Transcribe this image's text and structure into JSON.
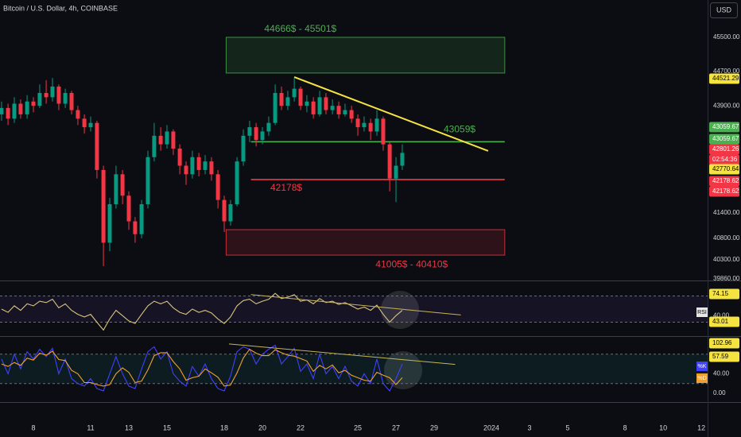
{
  "chart_data": [
    {
      "type": "candlestick",
      "title": "Bitcoin / U.S. Dollar, 4h, COINBASE",
      "currency": "USD",
      "x": [
        6.33,
        6.67,
        7,
        7.33,
        7.67,
        8,
        8.33,
        8.67,
        9,
        9.33,
        9.67,
        10,
        10.33,
        10.67,
        11,
        11.33,
        11.67,
        12,
        12.33,
        12.67,
        13,
        13.33,
        13.67,
        14,
        14.33,
        14.67,
        15,
        15.33,
        15.67,
        16,
        16.33,
        16.67,
        17,
        17.33,
        17.67,
        18,
        18.33,
        18.67,
        19,
        19.33,
        19.67,
        20,
        20.33,
        20.67,
        21,
        21.33,
        21.67,
        22,
        22.33,
        22.67,
        23,
        23.33,
        23.67,
        24,
        24.33,
        24.67,
        25,
        25.33,
        25.67,
        26,
        26.33,
        26.67,
        27,
        27.33
      ],
      "open": [
        43700,
        43850,
        43600,
        43950,
        43700,
        44000,
        43900,
        44200,
        44100,
        44350,
        43950,
        44200,
        43800,
        43600,
        43400,
        43500,
        42400,
        40700,
        41600,
        42300,
        41800,
        41200,
        40900,
        41600,
        42700,
        43200,
        43000,
        43300,
        42900,
        42500,
        42300,
        42700,
        42400,
        42600,
        42300,
        41700,
        41200,
        41600,
        42600,
        43200,
        43400,
        43100,
        43300,
        43500,
        44200,
        43900,
        44100,
        44300,
        43900,
        44000,
        43700,
        44100,
        43800,
        43900,
        43700,
        43800,
        43600,
        43400,
        43500,
        43300,
        43600,
        43000,
        42200,
        42500
      ],
      "high": [
        44000,
        43950,
        44100,
        44050,
        44150,
        44100,
        44400,
        44500,
        44550,
        44400,
        44300,
        44250,
        43900,
        43700,
        43650,
        43550,
        42500,
        41750,
        42500,
        42400,
        41900,
        41300,
        41700,
        42850,
        43500,
        43400,
        43450,
        43350,
        43000,
        42600,
        42850,
        42800,
        42750,
        42700,
        42400,
        41800,
        41700,
        42700,
        43350,
        43550,
        43500,
        43400,
        43650,
        44400,
        44350,
        44250,
        44550,
        44350,
        44150,
        44100,
        44250,
        44200,
        44050,
        44000,
        43950,
        43900,
        43700,
        43650,
        43600,
        43800,
        43650,
        43050,
        42700,
        43000
      ],
      "low": [
        43550,
        43450,
        43500,
        43600,
        43600,
        43750,
        43850,
        43950,
        44000,
        43800,
        43850,
        43700,
        43450,
        43250,
        43300,
        42200,
        40150,
        40500,
        41500,
        41600,
        41000,
        40700,
        40800,
        41500,
        42600,
        42850,
        42900,
        42750,
        42300,
        42050,
        42200,
        42250,
        42300,
        42150,
        41500,
        40950,
        41100,
        41550,
        42500,
        43050,
        42950,
        43000,
        43200,
        43450,
        43800,
        43800,
        44000,
        43800,
        43750,
        43600,
        43650,
        43700,
        43700,
        43600,
        43650,
        43500,
        43200,
        43300,
        43100,
        43200,
        42850,
        41900,
        41650,
        42400
      ],
      "close": [
        43850,
        43600,
        43950,
        43700,
        44000,
        43900,
        44200,
        44100,
        44350,
        43950,
        44200,
        43800,
        43600,
        43400,
        43500,
        42400,
        40700,
        41600,
        42300,
        41800,
        41200,
        40900,
        41600,
        42700,
        43200,
        43000,
        43300,
        42900,
        42500,
        42300,
        42700,
        42400,
        42600,
        42300,
        41700,
        41200,
        41600,
        42600,
        43200,
        43400,
        43100,
        43300,
        43500,
        44200,
        43900,
        44100,
        44300,
        43900,
        44000,
        43700,
        44100,
        43800,
        43900,
        43700,
        43800,
        43600,
        43400,
        43500,
        43300,
        43600,
        43000,
        42200,
        42500,
        42800
      ],
      "up_color": "#089981",
      "down_color": "#f23645",
      "xlim": [
        6.25,
        43.33
      ],
      "ylim": [
        39836,
        46373
      ],
      "xticks": [
        8,
        11,
        13,
        15,
        18,
        20,
        22,
        25,
        27,
        29,
        {
          "value": 32,
          "label": "2024"
        },
        {
          "value": 34,
          "label": "3"
        },
        {
          "value": 36,
          "label": "5"
        },
        {
          "value": 39,
          "label": "8"
        },
        {
          "value": 41,
          "label": "10"
        },
        {
          "value": 43,
          "label": "12"
        }
      ],
      "yticks": [
        {
          "value": 45500,
          "label": "45500.00"
        },
        {
          "value": 44700,
          "label": "44700.00"
        },
        {
          "value": 43900,
          "label": "43900.00"
        },
        {
          "value": 41400,
          "label": "41400.00"
        },
        {
          "value": 40800,
          "label": "40800.00"
        },
        {
          "value": 40300,
          "label": "40300.00"
        },
        {
          "value": 39860,
          "label": "39860.00"
        }
      ],
      "zones": [
        {
          "low": 44666,
          "high": 45501,
          "from": 18.1,
          "to": 32.7,
          "label": "44666$ - 45501$",
          "color": "#4caf50"
        },
        {
          "low": 40410,
          "high": 41005,
          "from": 18.1,
          "to": 32.7,
          "label": "41005$ - 40410$",
          "color": "#f23645"
        }
      ],
      "levels": [
        {
          "value": 43059,
          "from": 19.4,
          "to": 32.7,
          "label": "43059$",
          "color": "#4caf50"
        },
        {
          "value": 42178,
          "from": 19.4,
          "to": 32.7,
          "label": "42178$",
          "color": "#f23645"
        }
      ],
      "trendlines": [
        {
          "x": [
            21.67,
            31.83
          ],
          "y": [
            44572,
            42845
          ],
          "color": "#f5e342"
        }
      ],
      "badges": [
        {
          "text": "44521.29",
          "color": "#f5e342"
        },
        {
          "text": "43059.67",
          "color": "#4caf50"
        },
        {
          "text": "43059.67",
          "color": "#4caf50"
        },
        {
          "text": "42801.26",
          "color": "#f23645"
        },
        {
          "text": "02:54:36",
          "color": "#f23645"
        },
        {
          "text": "42770.64",
          "color": "#f5e342"
        },
        {
          "text": "42178.62",
          "color": "#f23645"
        },
        {
          "text": "42178.62",
          "color": "#f23645"
        }
      ]
    },
    {
      "type": "line",
      "series": [
        {
          "name": "RSI",
          "color": "#d8c37f",
          "values": [
            50,
            45,
            55,
            48,
            58,
            55,
            62,
            60,
            65,
            52,
            58,
            48,
            42,
            38,
            42,
            30,
            18,
            35,
            48,
            40,
            32,
            28,
            42,
            55,
            62,
            58,
            62,
            52,
            45,
            42,
            50,
            45,
            48,
            44,
            35,
            28,
            38,
            55,
            63,
            65,
            58,
            62,
            65,
            74,
            66,
            68,
            72,
            62,
            64,
            58,
            66,
            60,
            62,
            57,
            60,
            55,
            50,
            53,
            48,
            56,
            42,
            30,
            40,
            48
          ]
        }
      ],
      "ylim": [
        10,
        90
      ],
      "yticks": [
        {
          "value": 40,
          "label": "40.00"
        }
      ],
      "bands": [
        70,
        30
      ],
      "band_color": "#7e57c2",
      "trendlines": [
        {
          "x": [
            19.4,
            30.4
          ],
          "y": [
            72.1,
            41
          ],
          "color": "#c9b458"
        }
      ],
      "badges": [
        {
          "text": "74.15",
          "color": "#f5e342"
        },
        {
          "text": "43.01",
          "color": "#f5e342"
        }
      ]
    },
    {
      "type": "line",
      "series": [
        {
          "name": "%K",
          "color": "#4040ff",
          "values": [
            70,
            40,
            80,
            50,
            85,
            70,
            90,
            75,
            92,
            40,
            70,
            30,
            20,
            15,
            30,
            10,
            5,
            40,
            75,
            40,
            15,
            10,
            50,
            85,
            95,
            70,
            85,
            40,
            25,
            15,
            55,
            35,
            60,
            30,
            10,
            5,
            35,
            85,
            95,
            90,
            60,
            80,
            90,
            98,
            60,
            75,
            92,
            45,
            60,
            30,
            80,
            40,
            55,
            30,
            55,
            25,
            15,
            40,
            20,
            70,
            20,
            5,
            30,
            60
          ]
        },
        {
          "name": "%D",
          "color": "#f0a030",
          "values": [
            60,
            55,
            63,
            57,
            72,
            68,
            82,
            78,
            86,
            69,
            67,
            47,
            40,
            22,
            22,
            18,
            15,
            18,
            40,
            52,
            43,
            22,
            25,
            48,
            77,
            83,
            83,
            65,
            50,
            27,
            32,
            35,
            50,
            42,
            33,
            15,
            17,
            42,
            72,
            90,
            82,
            77,
            77,
            89,
            83,
            78,
            76,
            71,
            66,
            45,
            57,
            50,
            58,
            42,
            47,
            37,
            32,
            27,
            25,
            43,
            37,
            32,
            18,
            32
          ]
        }
      ],
      "ylim": [
        -16,
        112
      ],
      "yticks": [
        {
          "value": 0,
          "label": "0.00"
        },
        {
          "value": 40,
          "label": "40.00"
        }
      ],
      "bands": [
        80,
        20
      ],
      "band_color": "#26a69a",
      "trendlines": [
        {
          "x": [
            18.25,
            30.1
          ],
          "y": [
            100.8,
            59.2
          ],
          "color": "#c9b458"
        }
      ],
      "badges": [
        {
          "text": "102.96",
          "color": "#f5e342"
        },
        {
          "text": "57.59",
          "color": "#f5e342"
        }
      ]
    }
  ]
}
